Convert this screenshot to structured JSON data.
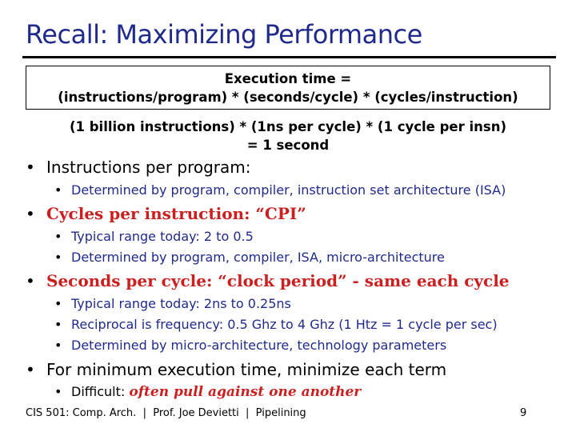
{
  "title": "Recall: Maximizing Performance",
  "formula": {
    "line1": "Execution time =",
    "line2": "(instructions/program) * (seconds/cycle) * (cycles/instruction)"
  },
  "example": {
    "line1": "(1 billion instructions) * (1ns per cycle) * (1 cycle per insn)",
    "line2": "= 1 second"
  },
  "bullets": {
    "b1": {
      "text": "Instructions per program:",
      "subs": [
        "Determined by program, compiler, instruction set architecture (ISA)"
      ]
    },
    "b2": {
      "text": "Cycles per instruction: “CPI”",
      "subs": [
        "Typical range today: 2 to 0.5",
        "Determined by program, compiler, ISA, micro-architecture"
      ]
    },
    "b3": {
      "text": "Seconds per cycle: “clock period”  - same each cycle",
      "subs": [
        "Typical range today: 2ns to 0.25ns",
        "Reciprocal is frequency: 0.5 Ghz to 4 Ghz (1 Htz = 1 cycle per sec)",
        "Determined by micro-architecture, technology parameters"
      ]
    },
    "b4": {
      "text": "For minimum execution time, minimize each term",
      "sub_prefix": "Difficult: ",
      "sub_emph": "often pull against one another"
    }
  },
  "footer": "CIS 501: Comp. Arch.  |  Prof. Joe Devietti  |  Pipelining",
  "page_number": "9",
  "colors": {
    "title": "#1f2a8c",
    "emphasis": "#cc1f1f",
    "sub_text": "#1f2a8c"
  }
}
